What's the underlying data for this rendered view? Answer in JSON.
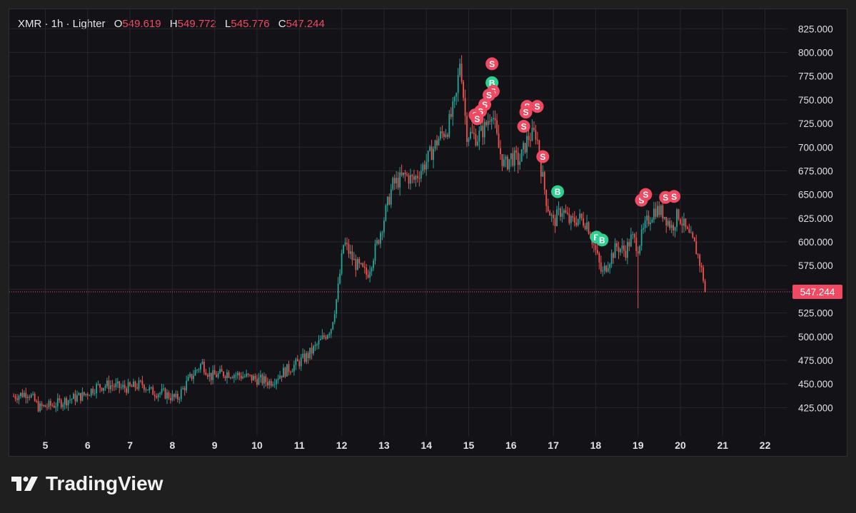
{
  "legend": {
    "symbol": "XMR · 1h · Lighter",
    "o_label": "O",
    "o": "549.619",
    "h_label": "H",
    "h": "549.772",
    "l_label": "L",
    "l": "545.776",
    "c_label": "C",
    "c": "547.244"
  },
  "brand": {
    "name": "TradingView"
  },
  "colors": {
    "up": "#26a69a",
    "down": "#ef5350",
    "buy": "#2bd08f",
    "sell": "#f04a62",
    "background": "#131217",
    "grid": "#26262c",
    "text": "#e0e0e0"
  },
  "chart_data": {
    "type": "candlestick",
    "symbol": "XMR",
    "interval": "1h",
    "exchange": "Lighter",
    "grid": true,
    "ylim": [
      405,
      835
    ],
    "xlim": [
      4.25,
      22.3
    ],
    "y_ticks": [
      "825.000",
      "800.000",
      "775.000",
      "750.000",
      "725.000",
      "700.000",
      "675.000",
      "650.000",
      "625.000",
      "600.000",
      "575.000",
      "550.000",
      "525.000",
      "500.000",
      "475.000",
      "450.000",
      "425.000"
    ],
    "y_tick_values": [
      825,
      800,
      775,
      750,
      725,
      700,
      675,
      650,
      625,
      600,
      575,
      550,
      525,
      500,
      475,
      450,
      425
    ],
    "x_ticks": [
      "5",
      "6",
      "7",
      "8",
      "9",
      "10",
      "11",
      "12",
      "13",
      "14",
      "15",
      "16",
      "17",
      "18",
      "19",
      "20",
      "21",
      "22"
    ],
    "x_tick_values": [
      5,
      6,
      7,
      8,
      9,
      10,
      11,
      12,
      13,
      14,
      15,
      16,
      17,
      18,
      19,
      20,
      21,
      22
    ],
    "last_price": 547.244,
    "last_price_label": "547.244",
    "price_path": [
      [
        4.25,
        437
      ],
      [
        4.6,
        441
      ],
      [
        4.85,
        425
      ],
      [
        5.2,
        428
      ],
      [
        5.5,
        433
      ],
      [
        5.9,
        438
      ],
      [
        6.2,
        447
      ],
      [
        6.5,
        449
      ],
      [
        6.8,
        446
      ],
      [
        7.0,
        446
      ],
      [
        7.3,
        450
      ],
      [
        7.5,
        442
      ],
      [
        7.8,
        440
      ],
      [
        8.1,
        434
      ],
      [
        8.4,
        455
      ],
      [
        8.7,
        472
      ],
      [
        8.9,
        458
      ],
      [
        9.3,
        462
      ],
      [
        9.7,
        458
      ],
      [
        10.0,
        455
      ],
      [
        10.3,
        452
      ],
      [
        10.6,
        462
      ],
      [
        10.9,
        470
      ],
      [
        11.2,
        480
      ],
      [
        11.5,
        495
      ],
      [
        11.75,
        510
      ],
      [
        11.9,
        545
      ],
      [
        12.05,
        600
      ],
      [
        12.3,
        578
      ],
      [
        12.6,
        565
      ],
      [
        12.85,
        600
      ],
      [
        13.0,
        625
      ],
      [
        13.2,
        660
      ],
      [
        13.5,
        670
      ],
      [
        13.7,
        665
      ],
      [
        14.0,
        685
      ],
      [
        14.3,
        710
      ],
      [
        14.5,
        720
      ],
      [
        14.7,
        750
      ],
      [
        14.8,
        795
      ],
      [
        14.95,
        715
      ],
      [
        15.2,
        710
      ],
      [
        15.4,
        722
      ],
      [
        15.55,
        740
      ],
      [
        15.7,
        700
      ],
      [
        15.85,
        680
      ],
      [
        16.0,
        690
      ],
      [
        16.2,
        685
      ],
      [
        16.4,
        710
      ],
      [
        16.6,
        715
      ],
      [
        16.7,
        680
      ],
      [
        16.85,
        640
      ],
      [
        17.0,
        620
      ],
      [
        17.2,
        635
      ],
      [
        17.4,
        620
      ],
      [
        17.6,
        625
      ],
      [
        17.8,
        620
      ],
      [
        18.0,
        590
      ],
      [
        18.15,
        565
      ],
      [
        18.3,
        580
      ],
      [
        18.5,
        595
      ],
      [
        18.7,
        590
      ],
      [
        18.85,
        605
      ],
      [
        19.0,
        595
      ],
      [
        19.2,
        620
      ],
      [
        19.4,
        635
      ],
      [
        19.6,
        630
      ],
      [
        19.8,
        615
      ],
      [
        19.95,
        630
      ],
      [
        20.15,
        610
      ],
      [
        20.35,
        595
      ],
      [
        20.45,
        580
      ],
      [
        20.55,
        560
      ],
      [
        20.6,
        547.244
      ]
    ],
    "min_wick": {
      "x": 18.98,
      "low": 530
    },
    "markers": [
      {
        "x": 15.55,
        "y": 788,
        "side": "S"
      },
      {
        "x": 15.55,
        "y": 768,
        "side": "B"
      },
      {
        "x": 15.58,
        "y": 759,
        "side": "S"
      },
      {
        "x": 15.48,
        "y": 755,
        "side": "S"
      },
      {
        "x": 15.38,
        "y": 745,
        "side": "S"
      },
      {
        "x": 15.28,
        "y": 738,
        "side": "S"
      },
      {
        "x": 15.15,
        "y": 734,
        "side": "S"
      },
      {
        "x": 15.2,
        "y": 730,
        "side": "S"
      },
      {
        "x": 16.38,
        "y": 743,
        "side": "S"
      },
      {
        "x": 16.35,
        "y": 737,
        "side": "S"
      },
      {
        "x": 16.62,
        "y": 743,
        "side": "S"
      },
      {
        "x": 16.3,
        "y": 722,
        "side": "S"
      },
      {
        "x": 16.75,
        "y": 690,
        "side": "S"
      },
      {
        "x": 17.1,
        "y": 653,
        "side": "B"
      },
      {
        "x": 18.02,
        "y": 605,
        "side": "B"
      },
      {
        "x": 18.15,
        "y": 602,
        "side": "B"
      },
      {
        "x": 19.08,
        "y": 644,
        "side": "S"
      },
      {
        "x": 19.18,
        "y": 650,
        "side": "S"
      },
      {
        "x": 19.65,
        "y": 647,
        "side": "S"
      },
      {
        "x": 19.85,
        "y": 648,
        "side": "S"
      }
    ]
  }
}
